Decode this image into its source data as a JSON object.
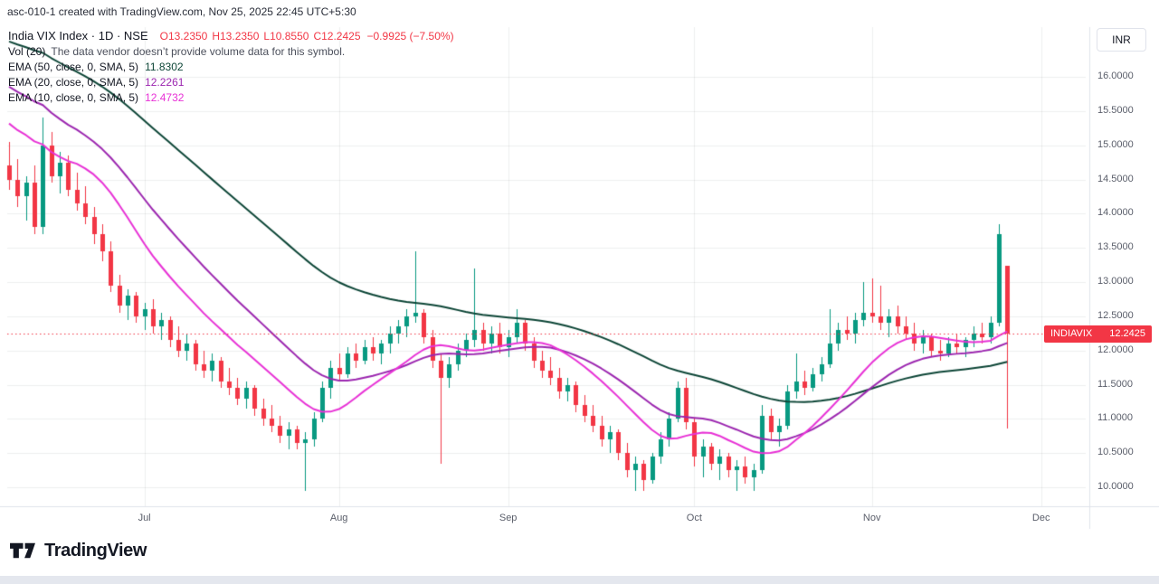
{
  "header": {
    "caption": "asc-010-1 created with TradingView.com, Nov 25, 2025 22:45 UTC+5:30"
  },
  "legend": {
    "symbol_title": "India VIX Index · 1D · NSE",
    "open": "O13.2350",
    "high": "H13.2350",
    "low": "L10.8550",
    "close": "C12.2425",
    "change": "−0.9925 (−7.50%)",
    "vol_label": "Vol (20)",
    "vol_message": "The data vendor doesn’t provide volume data for this symbol.",
    "indicators": [
      {
        "label": "EMA (50, close, 0, SMA, 5)",
        "value": "11.8302"
      },
      {
        "label": "EMA (20, close, 0, SMA, 5)",
        "value": "12.2261"
      },
      {
        "label": "EMA (10, close, 0, SMA, 5)",
        "value": "12.4732"
      }
    ]
  },
  "price_axis": {
    "currency_label": "INR",
    "tag": {
      "symbol": "INDIAVIX",
      "price": "12.2425"
    }
  },
  "footer": {
    "brand": "TradingView"
  },
  "chart_data": {
    "type": "candlestick",
    "title": "India VIX Index",
    "interval": "1D",
    "exchange": "NSE",
    "last": {
      "open": 13.235,
      "high": 13.235,
      "low": 10.855,
      "close": 12.2425,
      "change": -0.9925,
      "change_pct": -7.5
    },
    "indicator_values": {
      "ema50": 11.8302,
      "ema20": 12.2261,
      "ema10": 12.4732
    },
    "colors": {
      "up": "#089981",
      "down": "#f23645",
      "grid": "rgba(42,46,57,0.08)",
      "axis_line": "#e0e3eb",
      "last_price_line": "#f23645"
    },
    "emas": [
      {
        "length": 50,
        "start": 16.6,
        "color": "#0d4637"
      },
      {
        "length": 20,
        "start": 16.0,
        "color": "#9c27b0"
      },
      {
        "length": 10,
        "start": 15.5,
        "color": "#e832d6"
      }
    ],
    "y_axis": {
      "ticks": [
        16,
        15.5,
        15,
        14.5,
        14,
        13.5,
        13,
        12.5,
        12,
        11.5,
        11,
        10.5,
        10
      ],
      "tick_labels": [
        "16.0000",
        "15.5000",
        "15.0000",
        "14.5000",
        "14.0000",
        "13.5000",
        "13.0000",
        "12.5000",
        "12.0000",
        "11.5000",
        "11.0000",
        "10.5000",
        "10.0000"
      ]
    },
    "x_axis": {
      "months": [
        {
          "label": "Jul",
          "index": 16
        },
        {
          "label": "Aug",
          "index": 39
        },
        {
          "label": "Sep",
          "index": 59
        },
        {
          "label": "Oct",
          "index": 81
        },
        {
          "label": "Nov",
          "index": 102
        },
        {
          "label": "Dec",
          "index": 122
        }
      ]
    },
    "candles": [
      [
        14.7,
        15.05,
        14.35,
        14.5
      ],
      [
        14.5,
        14.8,
        14.1,
        14.25
      ],
      [
        14.25,
        14.55,
        13.9,
        14.45
      ],
      [
        14.45,
        14.7,
        13.7,
        13.8
      ],
      [
        13.8,
        15.4,
        13.7,
        15.0
      ],
      [
        15.0,
        15.2,
        14.45,
        14.55
      ],
      [
        14.55,
        14.9,
        14.3,
        14.75
      ],
      [
        14.75,
        14.85,
        14.25,
        14.35
      ],
      [
        14.35,
        14.6,
        14.05,
        14.15
      ],
      [
        14.15,
        14.4,
        13.85,
        13.95
      ],
      [
        13.95,
        14.1,
        13.55,
        13.7
      ],
      [
        13.7,
        13.85,
        13.3,
        13.45
      ],
      [
        13.45,
        13.6,
        12.85,
        12.95
      ],
      [
        12.95,
        13.1,
        12.55,
        12.65
      ],
      [
        12.65,
        12.9,
        12.45,
        12.8
      ],
      [
        12.8,
        12.85,
        12.4,
        12.5
      ],
      [
        12.5,
        12.7,
        12.3,
        12.6
      ],
      [
        12.6,
        12.75,
        12.25,
        12.35
      ],
      [
        12.35,
        12.55,
        12.15,
        12.45
      ],
      [
        12.45,
        12.5,
        12.05,
        12.15
      ],
      [
        12.15,
        12.35,
        11.9,
        12.0
      ],
      [
        12.0,
        12.25,
        11.85,
        12.1
      ],
      [
        12.1,
        12.15,
        11.7,
        11.8
      ],
      [
        11.8,
        12.0,
        11.6,
        11.7
      ],
      [
        11.7,
        11.95,
        11.55,
        11.85
      ],
      [
        11.85,
        11.9,
        11.45,
        11.55
      ],
      [
        11.55,
        11.75,
        11.35,
        11.45
      ],
      [
        11.45,
        11.6,
        11.2,
        11.3
      ],
      [
        11.3,
        11.55,
        11.15,
        11.45
      ],
      [
        11.45,
        11.5,
        11.05,
        11.15
      ],
      [
        11.15,
        11.3,
        10.9,
        11.0
      ],
      [
        11.0,
        11.2,
        10.8,
        10.9
      ],
      [
        10.9,
        11.05,
        10.65,
        10.75
      ],
      [
        10.75,
        10.95,
        10.55,
        10.85
      ],
      [
        10.85,
        10.9,
        10.55,
        10.65
      ],
      [
        10.65,
        10.8,
        9.95,
        10.7
      ],
      [
        10.7,
        11.1,
        10.6,
        11.0
      ],
      [
        11.0,
        11.55,
        10.95,
        11.45
      ],
      [
        11.45,
        11.85,
        11.3,
        11.75
      ],
      [
        11.75,
        11.95,
        11.55,
        11.65
      ],
      [
        11.65,
        12.05,
        11.6,
        11.95
      ],
      [
        11.95,
        12.1,
        11.75,
        11.85
      ],
      [
        11.85,
        12.15,
        11.8,
        12.05
      ],
      [
        12.05,
        12.2,
        11.85,
        11.95
      ],
      [
        11.95,
        12.15,
        11.8,
        12.1
      ],
      [
        12.1,
        12.35,
        11.95,
        12.25
      ],
      [
        12.25,
        12.45,
        12.1,
        12.35
      ],
      [
        12.35,
        12.6,
        12.2,
        12.5
      ],
      [
        12.5,
        13.45,
        12.4,
        12.55
      ],
      [
        12.55,
        12.6,
        12.1,
        12.2
      ],
      [
        12.2,
        12.3,
        11.75,
        11.85
      ],
      [
        11.85,
        11.95,
        10.35,
        11.6
      ],
      [
        11.6,
        11.9,
        11.45,
        11.8
      ],
      [
        11.8,
        12.1,
        11.7,
        12.0
      ],
      [
        12.0,
        12.25,
        11.9,
        12.15
      ],
      [
        12.15,
        13.2,
        12.05,
        12.3
      ],
      [
        12.3,
        12.4,
        12.0,
        12.1
      ],
      [
        12.1,
        12.35,
        11.95,
        12.25
      ],
      [
        12.25,
        12.4,
        11.95,
        12.05
      ],
      [
        12.05,
        12.3,
        11.9,
        12.2
      ],
      [
        12.2,
        12.6,
        12.1,
        12.4
      ],
      [
        12.4,
        12.45,
        12.0,
        12.1
      ],
      [
        12.1,
        12.2,
        11.75,
        11.85
      ],
      [
        11.85,
        12.0,
        11.6,
        11.7
      ],
      [
        11.7,
        11.9,
        11.5,
        11.6
      ],
      [
        11.6,
        11.75,
        11.3,
        11.4
      ],
      [
        11.4,
        11.6,
        11.25,
        11.5
      ],
      [
        11.5,
        11.55,
        11.1,
        11.2
      ],
      [
        11.2,
        11.35,
        10.95,
        11.05
      ],
      [
        11.05,
        11.2,
        10.8,
        10.9
      ],
      [
        10.9,
        11.05,
        10.6,
        10.7
      ],
      [
        10.7,
        10.9,
        10.5,
        10.8
      ],
      [
        10.8,
        10.85,
        10.4,
        10.5
      ],
      [
        10.5,
        10.65,
        10.15,
        10.25
      ],
      [
        10.25,
        10.45,
        9.95,
        10.35
      ],
      [
        10.35,
        10.4,
        9.95,
        10.1
      ],
      [
        10.1,
        10.5,
        10.05,
        10.45
      ],
      [
        10.45,
        10.8,
        10.35,
        10.7
      ],
      [
        10.7,
        11.1,
        10.6,
        11.0
      ],
      [
        11.0,
        11.55,
        10.95,
        11.45
      ],
      [
        11.45,
        11.6,
        10.85,
        10.95
      ],
      [
        10.95,
        11.0,
        10.3,
        10.45
      ],
      [
        10.45,
        10.7,
        10.15,
        10.6
      ],
      [
        10.6,
        10.65,
        10.25,
        10.35
      ],
      [
        10.35,
        10.55,
        10.1,
        10.45
      ],
      [
        10.45,
        10.5,
        10.15,
        10.25
      ],
      [
        10.25,
        10.4,
        9.95,
        10.3
      ],
      [
        10.3,
        10.45,
        10.05,
        10.15
      ],
      [
        10.15,
        10.35,
        9.95,
        10.25
      ],
      [
        10.25,
        11.2,
        10.2,
        11.05
      ],
      [
        11.05,
        11.15,
        10.7,
        10.8
      ],
      [
        10.8,
        11.0,
        10.6,
        10.9
      ],
      [
        10.9,
        11.5,
        10.85,
        11.4
      ],
      [
        11.4,
        11.95,
        11.3,
        11.55
      ],
      [
        11.55,
        11.7,
        11.35,
        11.45
      ],
      [
        11.45,
        11.75,
        11.4,
        11.65
      ],
      [
        11.65,
        11.9,
        11.55,
        11.8
      ],
      [
        11.8,
        12.6,
        11.75,
        12.1
      ],
      [
        12.1,
        12.4,
        12.0,
        12.3
      ],
      [
        12.3,
        12.5,
        12.15,
        12.25
      ],
      [
        12.25,
        12.55,
        12.1,
        12.45
      ],
      [
        12.45,
        13.0,
        12.35,
        12.55
      ],
      [
        12.55,
        13.05,
        12.4,
        12.5
      ],
      [
        12.5,
        12.95,
        12.3,
        12.4
      ],
      [
        12.4,
        12.6,
        12.2,
        12.5
      ],
      [
        12.5,
        12.65,
        12.25,
        12.35
      ],
      [
        12.35,
        12.5,
        12.15,
        12.25
      ],
      [
        12.25,
        12.4,
        12.0,
        12.1
      ],
      [
        12.1,
        12.3,
        11.95,
        12.2
      ],
      [
        12.2,
        12.25,
        11.9,
        12.0
      ],
      [
        12.0,
        12.15,
        11.85,
        11.95
      ],
      [
        11.95,
        12.2,
        11.9,
        12.1
      ],
      [
        12.1,
        12.25,
        11.95,
        12.05
      ],
      [
        12.05,
        12.2,
        11.9,
        12.15
      ],
      [
        12.15,
        12.35,
        12.05,
        12.25
      ],
      [
        12.25,
        12.4,
        12.1,
        12.2
      ],
      [
        12.2,
        12.5,
        12.1,
        12.4
      ],
      [
        12.4,
        13.85,
        12.35,
        13.7
      ],
      [
        13.235,
        13.235,
        10.855,
        12.2425
      ]
    ]
  }
}
